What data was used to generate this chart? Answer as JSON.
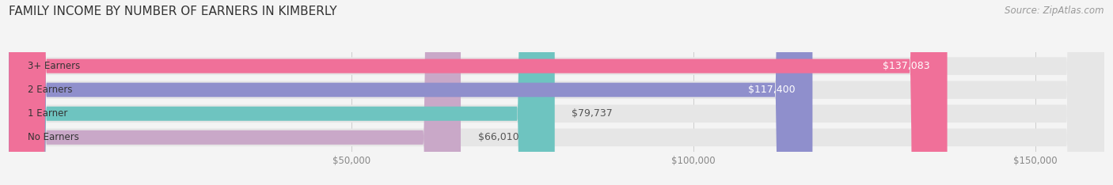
{
  "title": "FAMILY INCOME BY NUMBER OF EARNERS IN KIMBERLY",
  "source": "Source: ZipAtlas.com",
  "categories": [
    "No Earners",
    "1 Earner",
    "2 Earners",
    "3+ Earners"
  ],
  "values": [
    66010,
    79737,
    117400,
    137083
  ],
  "labels": [
    "$66,010",
    "$79,737",
    "$117,400",
    "$137,083"
  ],
  "bar_colors": [
    "#c9a8c8",
    "#6ec4c0",
    "#8f8fcc",
    "#f07099"
  ],
  "label_colors_inside": [
    false,
    false,
    true,
    true
  ],
  "xlim": [
    0,
    160000
  ],
  "xticks": [
    50000,
    100000,
    150000
  ],
  "xtick_labels": [
    "$50,000",
    "$100,000",
    "$150,000"
  ],
  "title_fontsize": 11,
  "source_fontsize": 8.5,
  "bar_label_fontsize": 9,
  "category_fontsize": 8.5,
  "tick_fontsize": 8.5,
  "bg_color": "#f4f4f4",
  "bar_track_color": "#e6e6e6"
}
